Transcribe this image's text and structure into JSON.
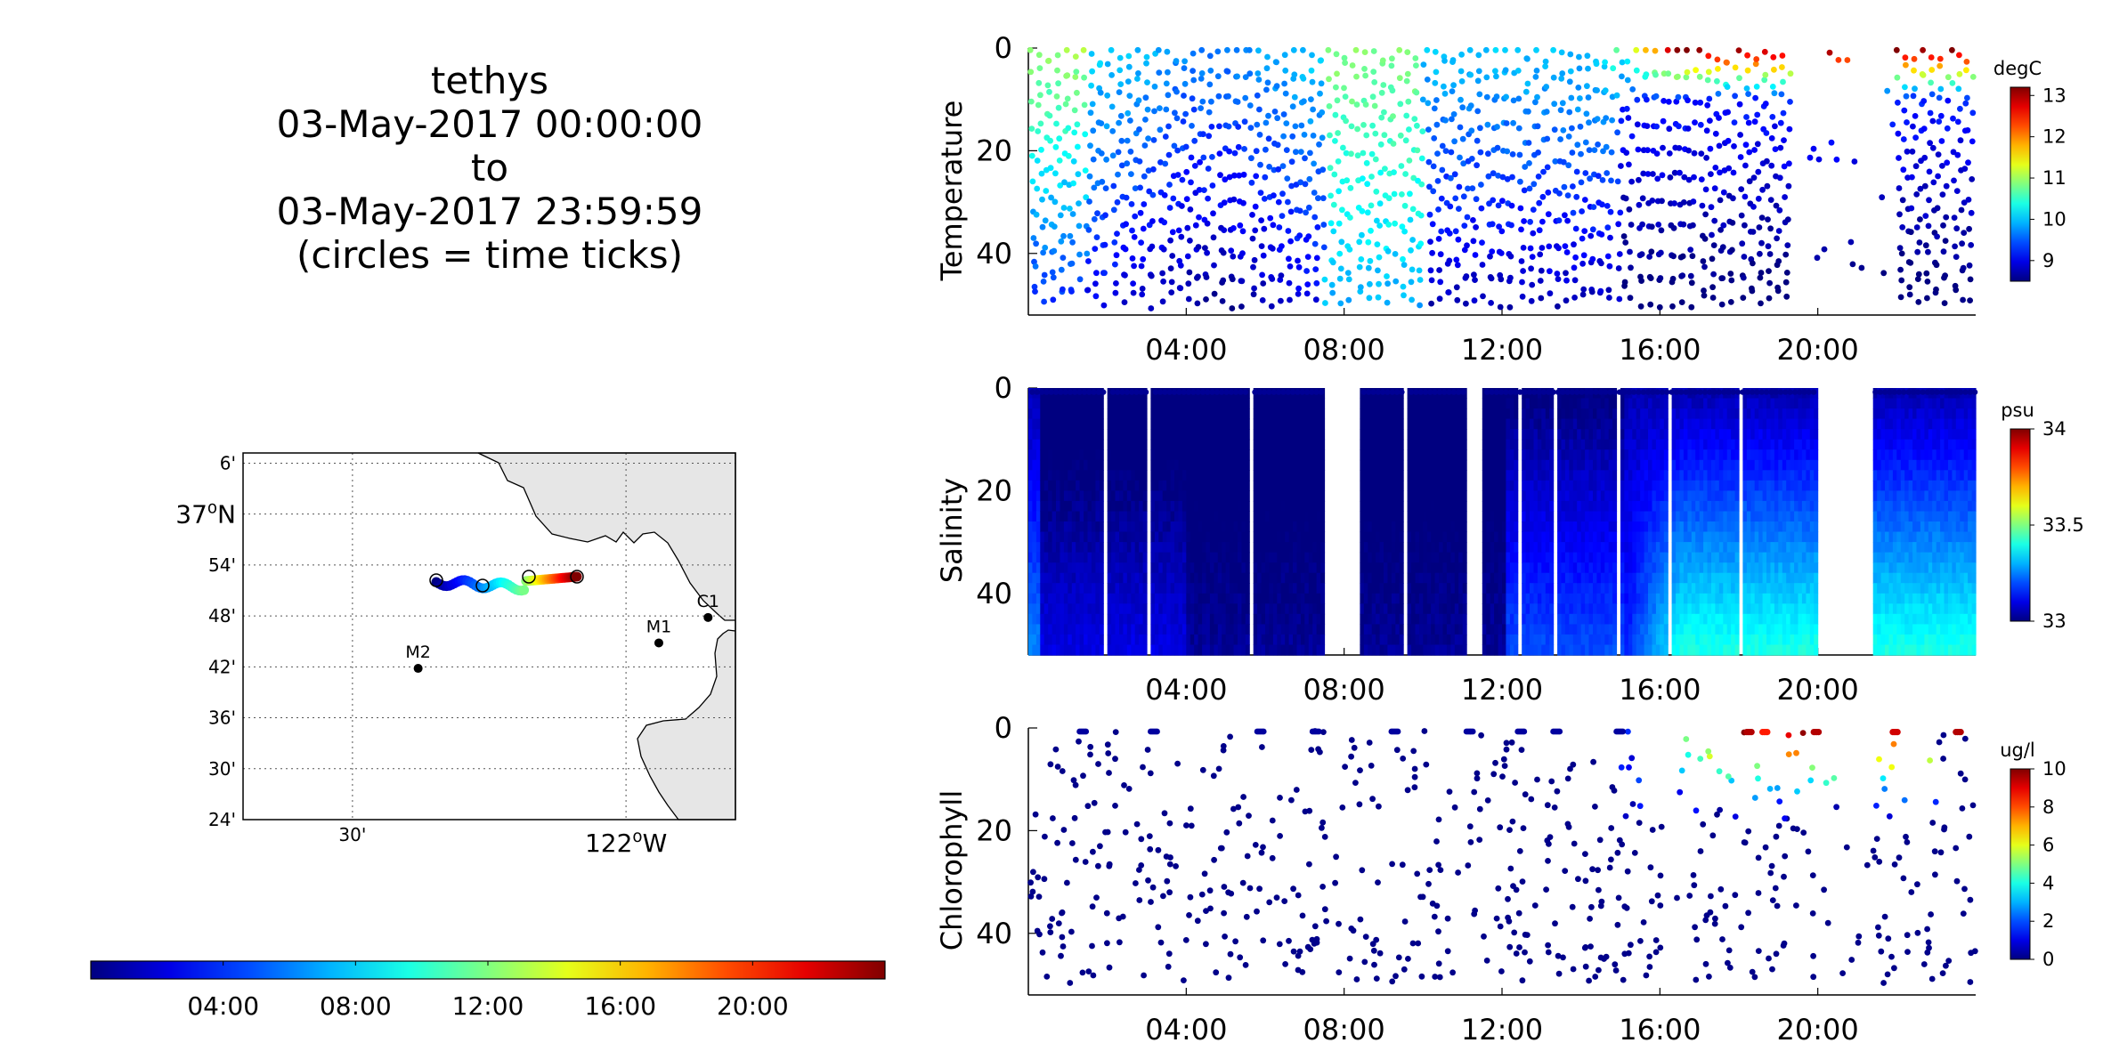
{
  "header": {
    "lines": [
      "tethys",
      "03-May-2017 00:00:00",
      "to",
      "03-May-2017 23:59:59",
      "(circles = time ticks)"
    ]
  },
  "map": {
    "lat_labels": [
      "6'",
      "37°N",
      "54'",
      "48'",
      "42'",
      "36'",
      "30'",
      "24'"
    ],
    "lon_labels": [
      "30'",
      "122°W"
    ],
    "stations": [
      {
        "name": "C1",
        "lon": -121.85,
        "lat": 36.797
      },
      {
        "name": "M1",
        "lon": -121.94,
        "lat": 36.747
      },
      {
        "name": "M2",
        "lon": -122.38,
        "lat": 36.697
      }
    ],
    "land_color": "#e6e6e6"
  },
  "time_colorbar": {
    "tick_labels": [
      "04:00",
      "08:00",
      "12:00",
      "16:00",
      "20:00"
    ],
    "colormap": "jet"
  },
  "chart_data": [
    {
      "type": "scatter",
      "title": "",
      "ylabel": "Temperature",
      "units": "degC",
      "x_ticks": [
        "04:00",
        "08:00",
        "12:00",
        "16:00",
        "20:00"
      ],
      "y_ticks": [
        0,
        20,
        40
      ],
      "ylim": [
        52,
        0
      ],
      "xlim": [
        "00:00",
        "24:00"
      ],
      "clim": [
        8.5,
        13.2
      ],
      "colorbar_ticks": [
        9,
        10,
        11,
        12,
        13
      ],
      "yo_start_hours": [
        0.05,
        1.4,
        2.1,
        3.3,
        4.8,
        5.6,
        7.6,
        8.3,
        9.4,
        10.1,
        11.6,
        12.4,
        13.3,
        14.9,
        15.4,
        16.2,
        17.0,
        18.0,
        19.4,
        21.4,
        22.0,
        23.4
      ],
      "notes": "dense yo-yo profile dots; warm surface layer (>12 degC) after 15:00"
    },
    {
      "type": "scatter",
      "title": "",
      "ylabel": "Salinity",
      "units": "psu",
      "x_ticks": [
        "04:00",
        "08:00",
        "12:00",
        "16:00",
        "20:00"
      ],
      "y_ticks": [
        0,
        20,
        40
      ],
      "ylim": [
        52,
        0
      ],
      "xlim": [
        "00:00",
        "24:00"
      ],
      "clim": [
        33.0,
        34.0
      ],
      "colorbar_ticks": [
        33,
        33.5,
        34
      ],
      "data_gaps_hours": [
        [
          7.5,
          8.4
        ],
        [
          9.5,
          9.6
        ],
        [
          11.1,
          11.5
        ],
        [
          20.0,
          21.4
        ]
      ],
      "notes": "fresher (~33.0) water before 12:00, saltier (~33.4) at depth after 15:00"
    },
    {
      "type": "scatter",
      "title": "",
      "ylabel": "Chlorophyll",
      "units": "ug/l",
      "x_ticks": [
        "04:00",
        "08:00",
        "12:00",
        "16:00",
        "20:00"
      ],
      "y_ticks": [
        0,
        20,
        40
      ],
      "ylim": [
        52,
        0
      ],
      "xlim": [
        "00:00",
        "24:00"
      ],
      "clim": [
        0,
        10
      ],
      "colorbar_ticks": [
        0,
        2,
        4,
        6,
        8,
        10
      ],
      "notes": "sparse samples ~0 ug/l except near-surface bloom (4-10 ug/l) between 15:00 and 23:00"
    }
  ]
}
